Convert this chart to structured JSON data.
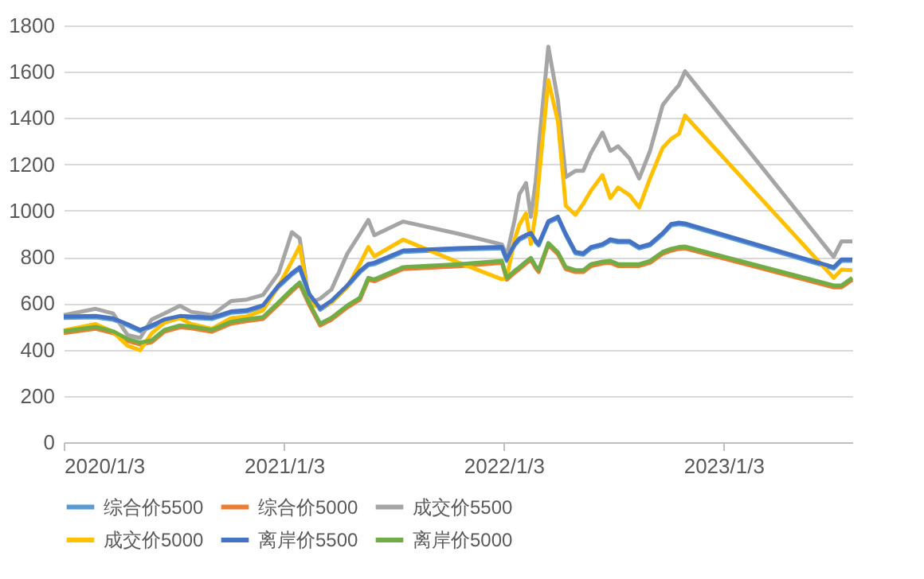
{
  "chart_data": {
    "type": "line",
    "x": [
      "2020-01-03",
      "2020-02-25",
      "2020-03-25",
      "2020-04-18",
      "2020-05-09",
      "2020-05-28",
      "2020-06-18",
      "2020-07-14",
      "2020-08-02",
      "2020-09-05",
      "2020-10-07",
      "2020-11-02",
      "2020-11-29",
      "2020-12-25",
      "2021-01-16",
      "2021-01-29",
      "2021-02-14",
      "2021-03-04",
      "2021-03-23",
      "2021-04-18",
      "2021-05-09",
      "2021-05-23",
      "2021-06-02",
      "2021-07-20",
      "2021-10-20",
      "2021-12-31",
      "2022-01-08",
      "2022-01-21",
      "2022-01-29",
      "2022-02-09",
      "2022-02-17",
      "2022-02-25",
      "2022-03-02",
      "2022-03-18",
      "2022-04-03",
      "2022-04-16",
      "2022-05-02",
      "2022-05-15",
      "2022-05-28",
      "2022-06-16",
      "2022-06-29",
      "2022-07-12",
      "2022-07-31",
      "2022-08-16",
      "2022-09-03",
      "2022-09-24",
      "2022-10-08",
      "2022-10-21",
      "2022-10-31",
      "2023-07-05",
      "2023-07-18",
      "2023-08-05"
    ],
    "series": [
      {
        "name": "综合价5500",
        "color": "#5b9bd5",
        "values": [
          537,
          539,
          529,
          504,
          479,
          498,
          524,
          539,
          537,
          532,
          559,
          564,
          585,
          671,
          724,
          750,
          634,
          572,
          605,
          671,
          734,
          764,
          769,
          822,
          832,
          837,
          783,
          850,
          874,
          889,
          897,
          864,
          850,
          948,
          968,
          894,
          816,
          810,
          837,
          850,
          870,
          863,
          863,
          837,
          850,
          897,
          936,
          942,
          939,
          750,
          783,
          783
        ]
      },
      {
        "name": "综合价5000",
        "color": "#ed7d31",
        "values": [
          471,
          490,
          471,
          438,
          422,
          432,
          477,
          496,
          492,
          477,
          512,
          523,
          532,
          596,
          652,
          682,
          592,
          504,
          530,
          582,
          616,
          702,
          695,
          748,
          760,
          775,
          702,
          732,
          748,
          772,
          788,
          752,
          735,
          852,
          812,
          748,
          735,
          735,
          761,
          772,
          775,
          761,
          761,
          761,
          775,
          814,
          827,
          835,
          837,
          669,
          669,
          702
        ]
      },
      {
        "name": "成交价5500",
        "color": "#a5a5a5",
        "values": [
          549,
          576,
          556,
          463,
          450,
          530,
          556,
          589,
          563,
          549,
          610,
          616,
          636,
          730,
          907,
          880,
          602,
          620,
          660,
          814,
          900,
          960,
          894,
          953,
          900,
          854,
          807,
          960,
          1072,
          1119,
          973,
          1125,
          1271,
          1708,
          1476,
          1145,
          1172,
          1172,
          1250,
          1337,
          1258,
          1278,
          1225,
          1139,
          1258,
          1456,
          1503,
          1542,
          1602,
          801,
          867,
          867
        ]
      },
      {
        "name": "成交价5000",
        "color": "#ffc000",
        "values": [
          483,
          510,
          477,
          417,
          397,
          470,
          516,
          536,
          510,
          490,
          536,
          543,
          570,
          675,
          781,
          847,
          600,
          580,
          604,
          670,
          770,
          843,
          803,
          875,
          776,
          704,
          710,
          876,
          940,
          988,
          856,
          988,
          1130,
          1564,
          1385,
          1021,
          982,
          1030,
          1087,
          1153,
          1054,
          1100,
          1067,
          1014,
          1140,
          1272,
          1310,
          1332,
          1411,
          710,
          745,
          743
        ]
      },
      {
        "name": "离岸价5500",
        "color": "#4472c4",
        "values": [
          543,
          545,
          535,
          510,
          485,
          504,
          530,
          545,
          543,
          538,
          565,
          570,
          591,
          677,
          730,
          756,
          640,
          578,
          611,
          677,
          740,
          770,
          775,
          828,
          838,
          843,
          789,
          856,
          880,
          895,
          903,
          870,
          856,
          954,
          974,
          900,
          822,
          816,
          843,
          856,
          876,
          869,
          869,
          843,
          856,
          903,
          942,
          948,
          945,
          756,
          789,
          789
        ]
      },
      {
        "name": "离岸价5000",
        "color": "#70ad47",
        "values": [
          479,
          498,
          479,
          446,
          430,
          440,
          485,
          504,
          500,
          485,
          520,
          531,
          540,
          604,
          660,
          690,
          600,
          512,
          538,
          590,
          624,
          710,
          703,
          756,
          769,
          783,
          710,
          740,
          756,
          780,
          796,
          760,
          743,
          860,
          820,
          756,
          743,
          743,
          769,
          780,
          783,
          769,
          769,
          769,
          783,
          822,
          835,
          843,
          845,
          677,
          677,
          710
        ]
      }
    ],
    "xlim": [
      "2020-01-03",
      "2023-08-05"
    ],
    "xticks": [
      {
        "value": "2020-01-03",
        "label": "2020/1/3"
      },
      {
        "value": "2021-01-03",
        "label": "2021/1/3"
      },
      {
        "value": "2022-01-03",
        "label": "2022/1/3"
      },
      {
        "value": "2023-01-03",
        "label": "2023/1/3"
      }
    ],
    "ylim": [
      0,
      1800
    ],
    "yticks": [
      0,
      200,
      400,
      600,
      800,
      1000,
      1200,
      1400,
      1600,
      1800
    ],
    "grid": "y",
    "legend": "bottom",
    "marker": "none",
    "line_style": "solid"
  }
}
